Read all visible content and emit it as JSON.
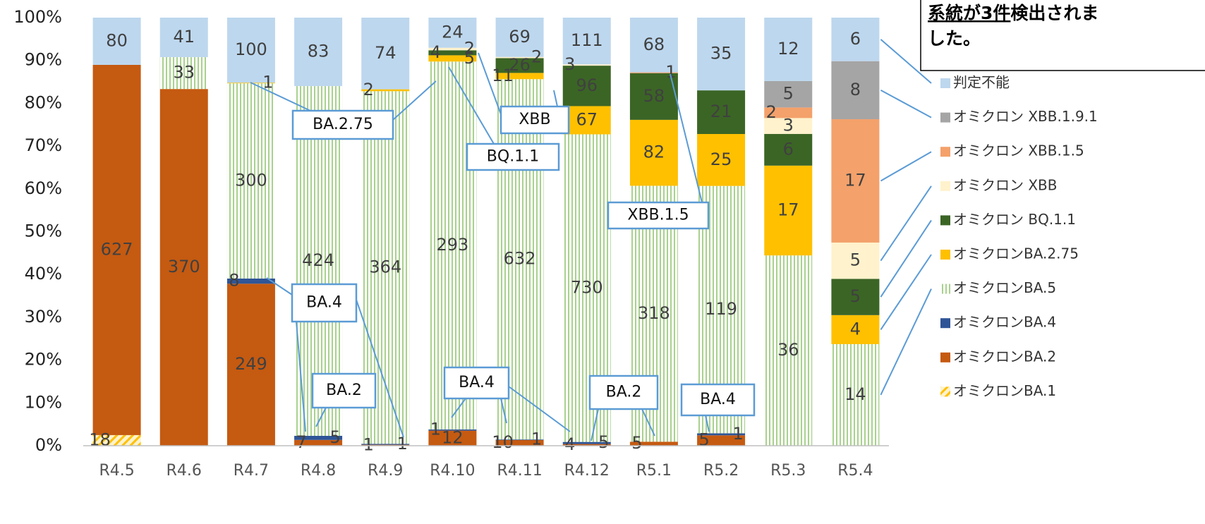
{
  "chart_data": {
    "type": "stacked_percent",
    "categories": [
      "R4.5",
      "R4.6",
      "R4.7",
      "R4.8",
      "R4.9",
      "R4.10",
      "R4.11",
      "R4.12",
      "R5.1",
      "R5.2",
      "R5.3",
      "R5.4"
    ],
    "series": [
      {
        "name": "オミクロンBA.1",
        "color": "#ffc000",
        "pattern": "hatch",
        "values": [
          18,
          null,
          null,
          null,
          null,
          null,
          null,
          null,
          null,
          null,
          null,
          null
        ]
      },
      {
        "name": "オミクロンBA.2",
        "color": "#c55a11",
        "values": [
          627,
          370,
          249,
          7,
          1,
          12,
          10,
          4,
          5,
          5,
          null,
          null
        ]
      },
      {
        "name": "オミクロンBA.4",
        "color": "#2f5597",
        "values": [
          null,
          null,
          8,
          5,
          1,
          1,
          1,
          5,
          null,
          1,
          null,
          null
        ]
      },
      {
        "name": "オミクロンBA.5",
        "color": "#a9d18e",
        "pattern": "stripes",
        "values": [
          null,
          33,
          300,
          424,
          364,
          293,
          632,
          730,
          318,
          119,
          36,
          14
        ]
      },
      {
        "name": "オミクロンBA.2.75",
        "color": "#ffc000",
        "values": [
          null,
          null,
          1,
          null,
          2,
          5,
          11,
          67,
          82,
          25,
          17,
          4
        ]
      },
      {
        "name": "オミクロン BQ.1.1",
        "color": "#3b6525",
        "values": [
          null,
          null,
          null,
          null,
          null,
          4,
          26,
          96,
          58,
          21,
          6,
          5
        ]
      },
      {
        "name": "オミクロン XBB",
        "color": "#fff2cc",
        "values": [
          null,
          null,
          null,
          null,
          null,
          2,
          2,
          3,
          null,
          null,
          3,
          5
        ]
      },
      {
        "name": "オミクロン XBB.1.5",
        "color": "#f4a16b",
        "values": [
          null,
          null,
          null,
          null,
          null,
          null,
          null,
          null,
          1,
          null,
          2,
          17
        ]
      },
      {
        "name": "オミクロン XBB.1.9.1",
        "color": "#a5a5a5",
        "values": [
          null,
          null,
          null,
          null,
          null,
          null,
          null,
          null,
          null,
          null,
          5,
          8
        ]
      },
      {
        "name": "判定不能",
        "color": "#bdd7ee",
        "values": [
          80,
          41,
          100,
          83,
          74,
          24,
          69,
          111,
          68,
          35,
          12,
          6
        ]
      }
    ],
    "ylim": [
      0,
      100
    ],
    "yticks": [
      {
        "value": 0,
        "label": "0%"
      },
      {
        "value": 10,
        "label": "10%"
      },
      {
        "value": 20,
        "label": "20%"
      },
      {
        "value": 30,
        "label": "30%"
      },
      {
        "value": 40,
        "label": "40%"
      },
      {
        "value": 50,
        "label": "50%"
      },
      {
        "value": 60,
        "label": "60%"
      },
      {
        "value": 70,
        "label": "70%"
      },
      {
        "value": 80,
        "label": "80%"
      },
      {
        "value": 90,
        "label": "90%"
      },
      {
        "value": 100,
        "label": "100%"
      }
    ],
    "grid": false,
    "legend": "right",
    "annotations": [
      "BA.2.75",
      "XBB",
      "BQ.1.1",
      "XBB.1.5",
      "BA.4",
      "BA.2",
      "BA.4",
      "BA.2",
      "BA.4"
    ]
  },
  "notice": {
    "underlined": "系統が3件",
    "rest": "検出されま",
    "line2": "した。"
  }
}
